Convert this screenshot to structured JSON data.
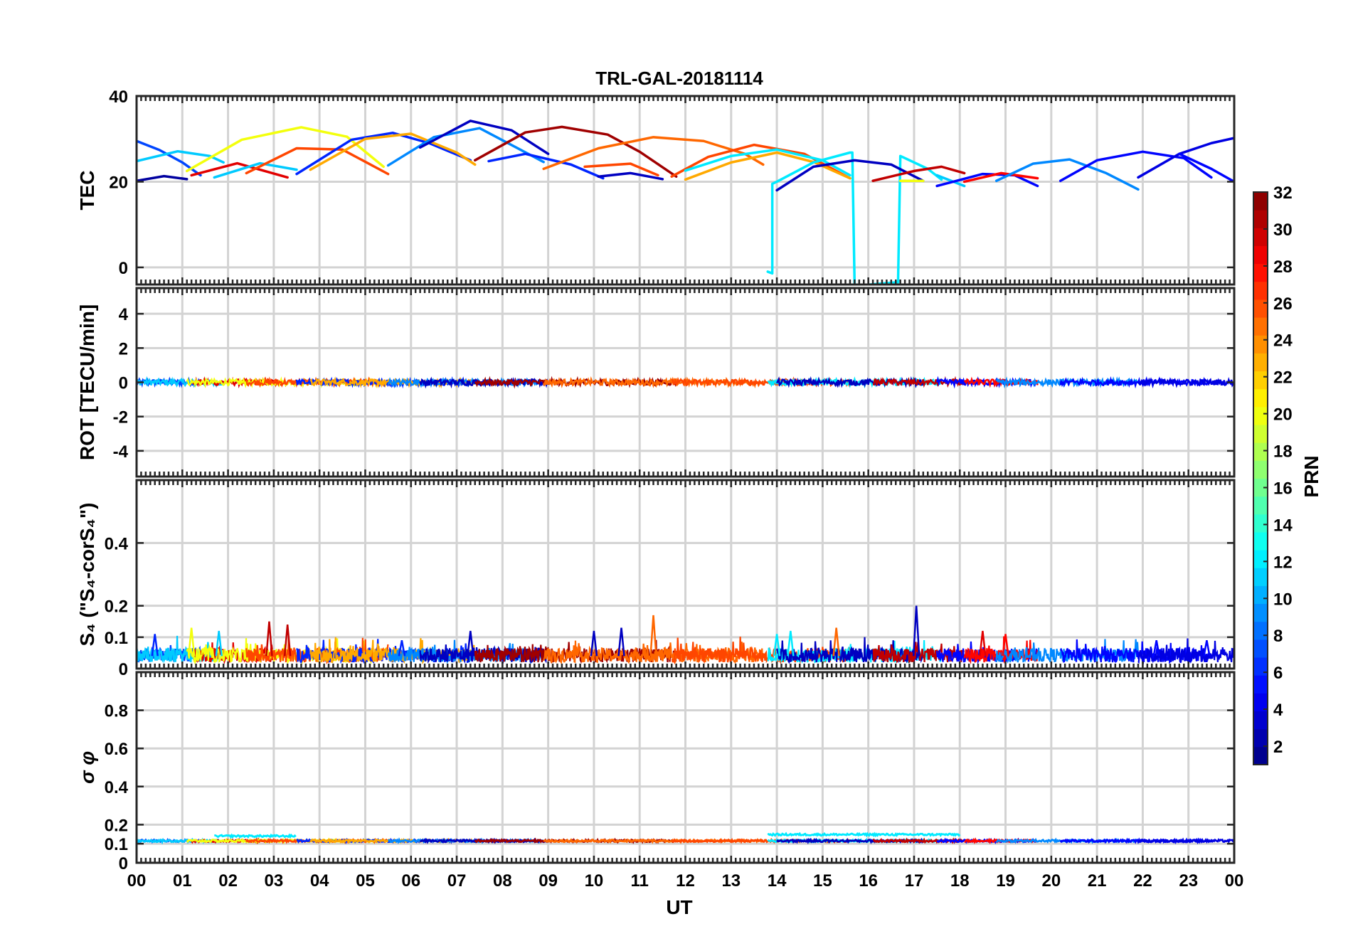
{
  "chart_data": {
    "type": "line",
    "title": "TRL-GAL-20181114",
    "xlabel": "UT",
    "xlim": [
      0,
      24
    ],
    "x_tick_values": [
      0,
      1,
      2,
      3,
      4,
      5,
      6,
      7,
      8,
      9,
      10,
      11,
      12,
      13,
      14,
      15,
      16,
      17,
      18,
      19,
      20,
      21,
      22,
      23,
      24
    ],
    "x_tick_labels": [
      "00",
      "01",
      "02",
      "03",
      "04",
      "05",
      "06",
      "07",
      "08",
      "09",
      "10",
      "11",
      "12",
      "13",
      "14",
      "15",
      "16",
      "17",
      "18",
      "19",
      "20",
      "21",
      "22",
      "23",
      "00"
    ],
    "colorbar": {
      "label": "PRN",
      "range": [
        1,
        32
      ],
      "tick_values": [
        2,
        4,
        6,
        8,
        10,
        12,
        14,
        16,
        18,
        20,
        22,
        24,
        26,
        28,
        30,
        32
      ],
      "tick_labels": [
        "2",
        "4",
        "6",
        "8",
        "10",
        "12",
        "14",
        "16",
        "18",
        "20",
        "22",
        "24",
        "26",
        "28",
        "30",
        "32"
      ]
    },
    "panels": [
      {
        "id": "tec",
        "ylabel": "TEC",
        "ylim": [
          -4,
          40
        ],
        "y_tick_values": [
          0,
          20,
          40
        ],
        "y_tick_labels": [
          "0",
          "20",
          "40"
        ],
        "series": [
          {
            "prn": 2,
            "x": [
              0.0,
              0.6,
              1.1
            ],
            "y": [
              20.2,
              21.3,
              20.6
            ]
          },
          {
            "prn": 7,
            "x": [
              0.0,
              0.5,
              1.0,
              1.4
            ],
            "y": [
              29.5,
              27.4,
              24.5,
              21.5
            ]
          },
          {
            "prn": 11,
            "x": [
              0.0,
              0.9,
              1.6,
              1.9
            ],
            "y": [
              24.8,
              27.1,
              26.0,
              24.5
            ]
          },
          {
            "prn": 29,
            "x": [
              1.2,
              2.2,
              3.3
            ],
            "y": [
              21.5,
              24.3,
              21.0
            ]
          },
          {
            "prn": 11,
            "x": [
              1.7,
              2.7,
              3.5
            ],
            "y": [
              21.0,
              24.3,
              22.8
            ]
          },
          {
            "prn": 20,
            "x": [
              1.1,
              2.3,
              3.6,
              4.6,
              5.4
            ],
            "y": [
              22.5,
              29.8,
              32.7,
              30.5,
              23.5
            ]
          },
          {
            "prn": 26,
            "x": [
              2.4,
              3.5,
              4.5,
              5.5
            ],
            "y": [
              22.0,
              27.8,
              27.5,
              21.8
            ]
          },
          {
            "prn": 6,
            "x": [
              3.5,
              4.7,
              5.6,
              6.4,
              7.3
            ],
            "y": [
              21.8,
              29.8,
              31.4,
              29.0,
              25.0
            ]
          },
          {
            "prn": 23,
            "x": [
              3.8,
              5.0,
              6.0,
              7.0,
              7.4
            ],
            "y": [
              22.8,
              30.0,
              31.2,
              26.8,
              24.0
            ]
          },
          {
            "prn": 9,
            "x": [
              5.5,
              6.5,
              7.5,
              8.3,
              8.9
            ],
            "y": [
              23.8,
              30.4,
              32.5,
              28.0,
              24.6
            ]
          },
          {
            "prn": 3,
            "x": [
              6.2,
              7.3,
              8.2,
              9.0
            ],
            "y": [
              28.0,
              34.2,
              32.0,
              26.5
            ]
          },
          {
            "prn": 6,
            "x": [
              7.7,
              8.5,
              9.5,
              10.2
            ],
            "y": [
              24.8,
              26.5,
              24.0,
              20.8
            ]
          },
          {
            "prn": 31,
            "x": [
              7.4,
              8.5,
              9.3,
              10.3,
              11.0,
              11.8
            ],
            "y": [
              25.0,
              31.5,
              32.8,
              31.0,
              27.0,
              21.2
            ]
          },
          {
            "prn": 25,
            "x": [
              8.9,
              10.1,
              11.3,
              12.4,
              13.3,
              13.7
            ],
            "y": [
              23.0,
              27.8,
              30.4,
              29.5,
              26.5,
              24.0
            ]
          },
          {
            "prn": 26,
            "x": [
              9.8,
              10.8,
              11.4
            ],
            "y": [
              23.5,
              24.2,
              21.5
            ]
          },
          {
            "prn": 3,
            "x": [
              10.1,
              10.8,
              11.5
            ],
            "y": [
              21.2,
              22.0,
              20.6
            ]
          },
          {
            "prn": 26,
            "x": [
              11.7,
              12.5,
              13.5,
              14.6,
              15.6
            ],
            "y": [
              21.2,
              25.8,
              28.6,
              26.5,
              20.8
            ]
          },
          {
            "prn": 23,
            "x": [
              12.0,
              13.0,
              14.0,
              14.8,
              15.6
            ],
            "y": [
              20.5,
              24.5,
              26.8,
              24.6,
              20.8
            ]
          },
          {
            "prn": 12,
            "x": [
              12.0,
              13.0,
              14.0,
              15.0,
              15.6
            ],
            "y": [
              22.6,
              26.0,
              27.5,
              25.0,
              21.5
            ]
          },
          {
            "prn": 12,
            "x": [
              13.8,
              13.9,
              13.9,
              14.0,
              14.8,
              15.6,
              15.65,
              15.7,
              16.6,
              16.65,
              16.7,
              17.3,
              17.6
            ],
            "y": [
              -1.0,
              -1.4,
              19.5,
              20.0,
              24.5,
              26.8,
              26.8,
              -4.3,
              -3.5,
              -3.5,
              26.0,
              23.0,
              20.5
            ]
          },
          {
            "prn": 3,
            "x": [
              14.0,
              14.8,
              15.7,
              16.5,
              17.2
            ],
            "y": [
              18.0,
              23.5,
              25.0,
              24.0,
              20.2
            ]
          },
          {
            "prn": 20,
            "x": [
              16.7,
              17.2
            ],
            "y": [
              20.2,
              20.2
            ]
          },
          {
            "prn": 30,
            "x": [
              16.1,
              17.0,
              17.6,
              18.1
            ],
            "y": [
              20.2,
              22.5,
              23.5,
              22.0
            ]
          },
          {
            "prn": 11,
            "x": [
              17.5,
              18.1
            ],
            "y": [
              21.5,
              19.0
            ]
          },
          {
            "prn": 5,
            "x": [
              17.5,
              18.5,
              19.2,
              19.7
            ],
            "y": [
              19.0,
              21.8,
              21.5,
              19.0
            ]
          },
          {
            "prn": 28,
            "x": [
              18.1,
              18.9,
              19.7
            ],
            "y": [
              20.0,
              22.0,
              20.8
            ]
          },
          {
            "prn": 9,
            "x": [
              18.8,
              19.6,
              20.4,
              21.2,
              21.9
            ],
            "y": [
              20.2,
              24.2,
              25.2,
              22.0,
              18.2
            ]
          },
          {
            "prn": 5,
            "x": [
              20.2,
              21.0,
              22.0,
              22.9,
              23.5
            ],
            "y": [
              20.2,
              25.0,
              27.0,
              25.5,
              21.0
            ]
          },
          {
            "prn": 4,
            "x": [
              21.9,
              22.8,
              23.5,
              24.0
            ],
            "y": [
              21.0,
              26.5,
              29.0,
              30.2
            ]
          },
          {
            "prn": 5,
            "x": [
              22.8,
              23.5,
              24.0
            ],
            "y": [
              26.5,
              23.0,
              20.0
            ]
          }
        ]
      },
      {
        "id": "rot",
        "ylabel": "ROT [TECU/min]",
        "ylim": [
          -5.5,
          5.5
        ],
        "y_tick_values": [
          -4,
          -2,
          0,
          2,
          4
        ],
        "y_tick_labels": [
          "-4",
          "-2",
          "0",
          "2",
          "4"
        ],
        "description_of_values": "ROT near 0 for all PRNs with small noise (|ROT| < 0.3)",
        "segments": [
          {
            "prn": 7,
            "x": [
              0.0,
              1.4
            ]
          },
          {
            "prn": 11,
            "x": [
              0.0,
              1.9
            ]
          },
          {
            "prn": 29,
            "x": [
              1.2,
              3.3
            ]
          },
          {
            "prn": 20,
            "x": [
              1.1,
              5.4
            ]
          },
          {
            "prn": 26,
            "x": [
              2.4,
              5.5
            ]
          },
          {
            "prn": 6,
            "x": [
              3.5,
              7.3
            ]
          },
          {
            "prn": 23,
            "x": [
              3.8,
              7.4
            ]
          },
          {
            "prn": 9,
            "x": [
              5.5,
              8.9
            ]
          },
          {
            "prn": 3,
            "x": [
              6.2,
              9.0
            ]
          },
          {
            "prn": 31,
            "x": [
              7.4,
              11.8
            ]
          },
          {
            "prn": 25,
            "x": [
              8.9,
              13.7
            ]
          },
          {
            "prn": 26,
            "x": [
              11.7,
              15.6
            ]
          },
          {
            "prn": 12,
            "x": [
              13.8,
              17.6
            ]
          },
          {
            "prn": 3,
            "x": [
              14.0,
              17.2
            ]
          },
          {
            "prn": 30,
            "x": [
              16.1,
              18.1
            ]
          },
          {
            "prn": 5,
            "x": [
              17.5,
              19.7
            ]
          },
          {
            "prn": 28,
            "x": [
              18.1,
              19.7
            ]
          },
          {
            "prn": 9,
            "x": [
              18.8,
              21.9
            ]
          },
          {
            "prn": 5,
            "x": [
              20.2,
              23.5
            ]
          },
          {
            "prn": 4,
            "x": [
              21.9,
              24.0
            ]
          }
        ]
      },
      {
        "id": "s4",
        "ylabel": "S₄ (\"S₄-corS₄\")",
        "ylim": [
          0,
          0.6
        ],
        "y_tick_values": [
          0,
          0.1,
          0.2,
          0.4
        ],
        "y_tick_labels": [
          "0",
          "0.1",
          "0.2",
          "0.4"
        ],
        "description_of_values": "S4 mostly 0.02-0.1 with spikes; max approx 0.2 near 17 UT",
        "baseline": 0.04,
        "spikes": [
          {
            "x": 0.4,
            "y": 0.11,
            "prn": 6
          },
          {
            "x": 1.2,
            "y": 0.13,
            "prn": 20
          },
          {
            "x": 1.8,
            "y": 0.12,
            "prn": 11
          },
          {
            "x": 2.9,
            "y": 0.15,
            "prn": 30
          },
          {
            "x": 3.3,
            "y": 0.14,
            "prn": 30
          },
          {
            "x": 5.8,
            "y": 0.09,
            "prn": 6
          },
          {
            "x": 7.3,
            "y": 0.12,
            "prn": 3
          },
          {
            "x": 10.0,
            "y": 0.12,
            "prn": 3
          },
          {
            "x": 10.6,
            "y": 0.13,
            "prn": 3
          },
          {
            "x": 11.3,
            "y": 0.17,
            "prn": 25
          },
          {
            "x": 14.0,
            "y": 0.11,
            "prn": 12
          },
          {
            "x": 14.3,
            "y": 0.12,
            "prn": 12
          },
          {
            "x": 15.3,
            "y": 0.13,
            "prn": 25
          },
          {
            "x": 17.05,
            "y": 0.2,
            "prn": 3
          },
          {
            "x": 18.5,
            "y": 0.12,
            "prn": 29
          },
          {
            "x": 19.0,
            "y": 0.11,
            "prn": 28
          },
          {
            "x": 22.3,
            "y": 0.09,
            "prn": 5
          },
          {
            "x": 23.4,
            "y": 0.09,
            "prn": 5
          }
        ]
      },
      {
        "id": "sigma_phi",
        "ylabel": "σ φ",
        "ylim": [
          0,
          1.0
        ],
        "y_tick_values": [
          0,
          0.1,
          0.2,
          0.4,
          0.6,
          0.8
        ],
        "y_tick_labels": [
          "0",
          "0.1",
          "0.2",
          "0.4",
          "0.6",
          "0.8"
        ],
        "description_of_values": "sigma phi approx 0.11-0.13 throughout; PRN 12 up to 0.15 between 13.8 and 18 UT",
        "baseline": 0.115,
        "bumps": [
          {
            "x": [
              1.7,
              3.5
            ],
            "y": 0.14,
            "prn": 12
          },
          {
            "x": [
              13.8,
              18.0
            ],
            "y": 0.148,
            "prn": 12
          }
        ]
      }
    ]
  }
}
